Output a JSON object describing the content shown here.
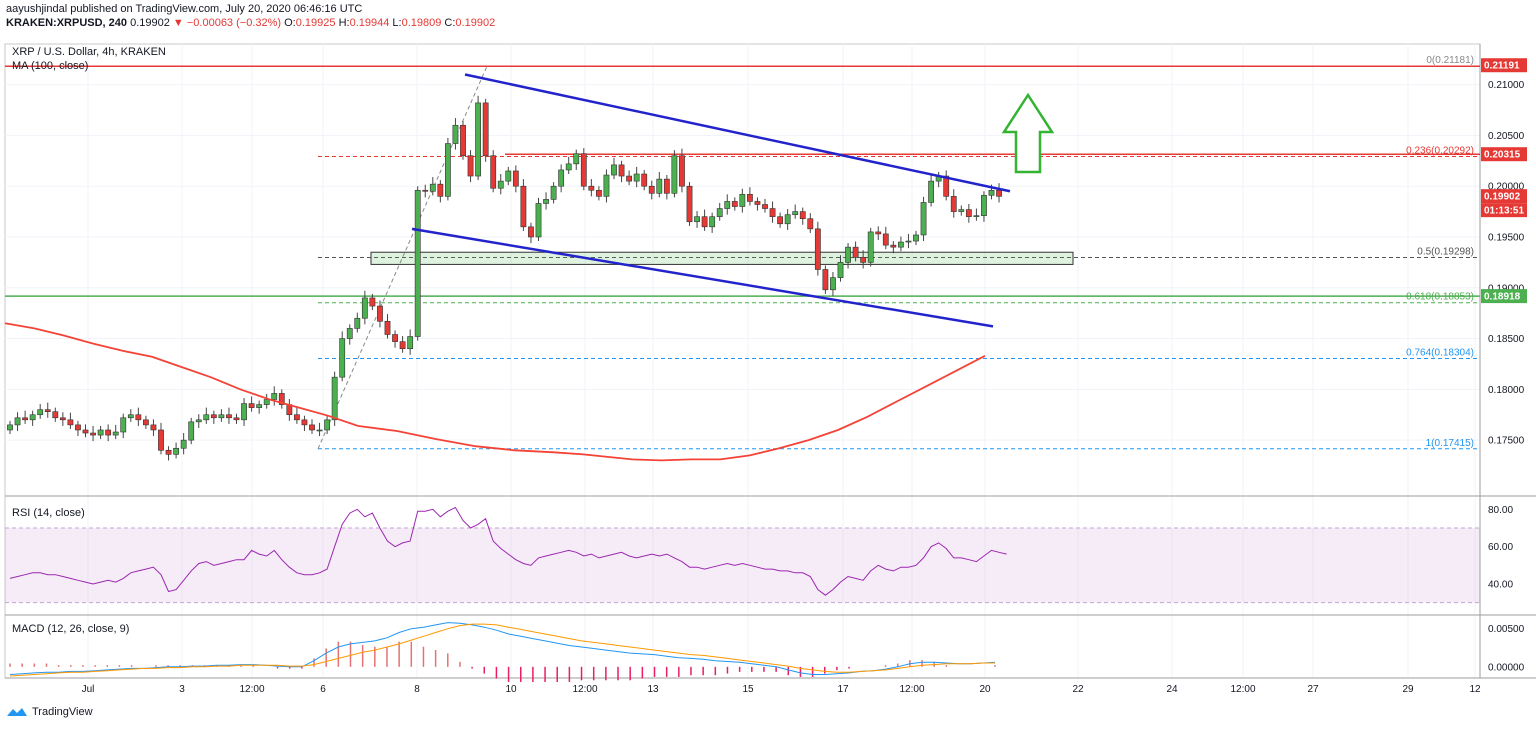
{
  "header": {
    "publisher": "aayushjindal",
    "published_text": "published on TradingView.com, July 20, 2020 06:46:16 UTC",
    "symbol": "KRAKEN:XRPUSD, 240",
    "last": "0.19902",
    "change": "▼ −0.00063 (−0.32%)",
    "o_label": "O:",
    "o": "0.19925",
    "h_label": "H:",
    "h": "0.19944",
    "l_label": "L:",
    "l": "0.19809",
    "c_label": "C:",
    "c": "0.19902"
  },
  "brand": "TradingView",
  "chart_data": [
    {
      "type": "candlestick",
      "title": "XRP / U.S. Dollar, 4h, KRAKEN",
      "subtitle": "MA (100, close)",
      "x_ticks": [
        "Jul",
        "3",
        "12:00",
        "6",
        "8",
        "10",
        "12:00",
        "13",
        "15",
        "17",
        "12:00",
        "20",
        "22",
        "24",
        "12:00",
        "27",
        "29",
        "12"
      ],
      "y_ticks": [
        "0.21000",
        "0.20500",
        "0.20000",
        "0.19500",
        "0.19000",
        "0.18500",
        "0.18000",
        "0.17500"
      ],
      "ylim": [
        0.1695,
        0.214
      ],
      "closes": [
        0.1765,
        0.1772,
        0.177,
        0.1775,
        0.178,
        0.1778,
        0.1772,
        0.177,
        0.1765,
        0.176,
        0.1757,
        0.1755,
        0.176,
        0.1755,
        0.1758,
        0.1772,
        0.1775,
        0.177,
        0.1765,
        0.176,
        0.174,
        0.1736,
        0.1742,
        0.175,
        0.1768,
        0.177,
        0.1775,
        0.1772,
        0.1775,
        0.1772,
        0.177,
        0.1786,
        0.1782,
        0.1785,
        0.179,
        0.1796,
        0.1785,
        0.1775,
        0.177,
        0.1765,
        0.176,
        0.176,
        0.177,
        0.1812,
        0.185,
        0.186,
        0.187,
        0.189,
        0.1882,
        0.1867,
        0.1854,
        0.1847,
        0.184,
        0.1852,
        0.1996,
        0.1995,
        0.2002,
        0.199,
        0.2042,
        0.206,
        0.203,
        0.201,
        0.2082,
        0.203,
        0.1998,
        0.2005,
        0.2015,
        0.2,
        0.196,
        0.195,
        0.1983,
        0.1987,
        0.2,
        0.2016,
        0.2022,
        0.2032,
        0.2,
        0.1996,
        0.199,
        0.2011,
        0.2021,
        0.201,
        0.2005,
        0.2012,
        0.2,
        0.1993,
        0.2007,
        0.1993,
        0.203,
        0.2,
        0.1965,
        0.197,
        0.196,
        0.197,
        0.1978,
        0.1985,
        0.198,
        0.1992,
        0.1985,
        0.1982,
        0.1978,
        0.197,
        0.1963,
        0.1972,
        0.1975,
        0.1968,
        0.1958,
        0.1918,
        0.1898,
        0.191,
        0.1925,
        0.194,
        0.193,
        0.1925,
        0.1955,
        0.1953,
        0.1942,
        0.194,
        0.1945,
        0.1946,
        0.1952,
        0.1984,
        0.2005,
        0.201,
        0.199,
        0.1975,
        0.1977,
        0.197,
        0.1971,
        0.1991,
        0.1996,
        0.199
      ],
      "ma100": [
        [
          0.0,
          0.1865
        ],
        [
          0.03,
          0.186
        ],
        [
          0.06,
          0.1853
        ],
        [
          0.09,
          0.1845
        ],
        [
          0.12,
          0.1838
        ],
        [
          0.15,
          0.1832
        ],
        [
          0.18,
          0.1822
        ],
        [
          0.21,
          0.1812
        ],
        [
          0.24,
          0.18
        ],
        [
          0.27,
          0.179
        ],
        [
          0.3,
          0.1782
        ],
        [
          0.33,
          0.1774
        ],
        [
          0.36,
          0.1764
        ],
        [
          0.4,
          0.1759
        ],
        [
          0.44,
          0.1751
        ],
        [
          0.48,
          0.1744
        ],
        [
          0.52,
          0.174
        ],
        [
          0.56,
          0.1738
        ],
        [
          0.59,
          0.1736
        ],
        [
          0.62,
          0.1733
        ],
        [
          0.64,
          0.1731
        ],
        [
          0.67,
          0.173
        ],
        [
          0.7,
          0.1731
        ],
        [
          0.73,
          0.1731
        ],
        [
          0.76,
          0.1735
        ],
        [
          0.79,
          0.1742
        ],
        [
          0.82,
          0.175
        ],
        [
          0.85,
          0.176
        ],
        [
          0.88,
          0.1773
        ],
        [
          0.91,
          0.1788
        ],
        [
          0.94,
          0.1803
        ],
        [
          0.97,
          0.1818
        ],
        [
          1.0,
          0.1833
        ]
      ],
      "fib_levels": [
        {
          "label": "0(0.21181)",
          "value": 0.21181,
          "color": "#888888"
        },
        {
          "label": "0.236(0.20292)",
          "value": 0.20292,
          "color": "#e53935"
        },
        {
          "label": "0.5(0.19298)",
          "value": 0.19298,
          "color": "#555555"
        },
        {
          "label": "0.618(0.18853)",
          "value": 0.18853,
          "color": "#4caf50"
        },
        {
          "label": "0.764(0.18304)",
          "value": 0.18304,
          "color": "#2196f3"
        },
        {
          "label": "1(0.17415)",
          "value": 0.17415,
          "color": "#2196f3"
        }
      ],
      "resistance": 0.20315,
      "support": 0.18918,
      "price_tags": [
        {
          "label": "0.21191",
          "value": 0.21191,
          "color": "#e53935"
        },
        {
          "label": "0.20315",
          "value": 0.20315,
          "color": "#e53935"
        },
        {
          "label": "0.19902",
          "value": 0.19902,
          "color": "#e53935"
        },
        {
          "label": "0.18918",
          "value": 0.18918,
          "color": "#4caf50"
        }
      ],
      "countdown": "01:13:51",
      "channel_upper": [
        [
          0.211,
          0.1995
        ]
      ],
      "channel_lower": [
        [
          0.1958,
          0.1862
        ]
      ],
      "zone": [
        0.1923,
        0.1935
      ],
      "colors": {
        "up": "#4caf50",
        "down": "#e53935",
        "ma": "#f44336",
        "channel": "#2323cc",
        "arrow": "#32b432"
      }
    },
    {
      "type": "line",
      "title": "RSI (14, close)",
      "y_ticks": [
        "80.00",
        "60.00",
        "40.00"
      ],
      "ylim": [
        25,
        85
      ],
      "band": [
        30,
        70
      ],
      "values": [
        43,
        44,
        45,
        46,
        46,
        45,
        45,
        44,
        43,
        42,
        41,
        40,
        41,
        42,
        41,
        43,
        46,
        47,
        48,
        49,
        45,
        36,
        37,
        42,
        47,
        51,
        52,
        50,
        51,
        52,
        53,
        53,
        58,
        56,
        55,
        58,
        53,
        49,
        46,
        45,
        45,
        46,
        48,
        60,
        72,
        78,
        80,
        76,
        78,
        70,
        63,
        60,
        62,
        63,
        79,
        79,
        80,
        76,
        79,
        81,
        74,
        70,
        72,
        75,
        63,
        59,
        56,
        53,
        51,
        50,
        54,
        55,
        56,
        57,
        58,
        57,
        55,
        56,
        54,
        55,
        56,
        57,
        55,
        54,
        55,
        56,
        55,
        56,
        54,
        52,
        49,
        49,
        48,
        49,
        50,
        51,
        50,
        51,
        50,
        49,
        48,
        48,
        47,
        47,
        46,
        46,
        44,
        37,
        34,
        37,
        41,
        44,
        43,
        42,
        47,
        50,
        48,
        47,
        49,
        49,
        50,
        54,
        60,
        62,
        59,
        54,
        54,
        53,
        52,
        55,
        58,
        57,
        56
      ]
    },
    {
      "type": "line",
      "title": "MACD (12, 26, close, 9)",
      "y_ticks": [
        "0.00500",
        "0.00000"
      ],
      "ylim": [
        -0.0012,
        0.0064
      ],
      "macd": [
        -0.001,
        -0.0009,
        -0.0008,
        -0.0007,
        -0.0007,
        -0.0006,
        -0.0006,
        -0.0005,
        -0.0004,
        -0.0003,
        -0.0002,
        -0.0002,
        -0.0001,
        0.0,
        0.0,
        0.0001,
        0.0001,
        0.0002,
        0.0002,
        0.0003,
        0.0003,
        0.0002,
        0.0001,
        0.0,
        0.0,
        0.0008,
        0.0018,
        0.0026,
        0.003,
        0.0032,
        0.0034,
        0.0038,
        0.0045,
        0.005,
        0.0052,
        0.0055,
        0.0058,
        0.0057,
        0.0055,
        0.0052,
        0.0048,
        0.0043,
        0.004,
        0.0037,
        0.0034,
        0.0031,
        0.0028,
        0.0026,
        0.0024,
        0.0022,
        0.002,
        0.0018,
        0.0017,
        0.0016,
        0.0014,
        0.0012,
        0.0011,
        0.001,
        0.0008,
        0.0007,
        0.0006,
        0.0004,
        0.0002,
        0.0,
        -0.0004,
        -0.0008,
        -0.001,
        -0.001,
        -0.0009,
        -0.0008,
        -0.0006,
        -0.0005,
        -0.0003,
        0.0,
        0.0004,
        0.0006,
        0.0006,
        0.0005,
        0.0004,
        0.0004,
        0.0005,
        0.0006
      ],
      "signal": [
        -0.0012,
        -0.0011,
        -0.001,
        -0.0009,
        -0.0008,
        -0.0007,
        -0.0007,
        -0.0006,
        -0.0005,
        -0.0004,
        -0.0003,
        -0.0002,
        -0.0002,
        -0.0001,
        -0.0001,
        0.0,
        0.0,
        0.0001,
        0.0001,
        0.0002,
        0.0002,
        0.0002,
        0.0002,
        0.0001,
        0.0001,
        0.0003,
        0.0007,
        0.0011,
        0.0015,
        0.0019,
        0.0022,
        0.0026,
        0.003,
        0.0035,
        0.004,
        0.0045,
        0.005,
        0.0054,
        0.0056,
        0.0056,
        0.0055,
        0.0052,
        0.0049,
        0.0046,
        0.0043,
        0.004,
        0.0037,
        0.0034,
        0.0032,
        0.003,
        0.0028,
        0.0026,
        0.0024,
        0.0022,
        0.002,
        0.0018,
        0.0016,
        0.0015,
        0.0013,
        0.0011,
        0.0009,
        0.0007,
        0.0005,
        0.0003,
        0.0001,
        -0.0002,
        -0.0004,
        -0.0006,
        -0.0007,
        -0.0007,
        -0.0006,
        -0.0005,
        -0.0004,
        -0.0002,
        0.0,
        0.0002,
        0.0003,
        0.0004,
        0.0004,
        0.0004,
        0.0005,
        0.0005
      ]
    }
  ]
}
